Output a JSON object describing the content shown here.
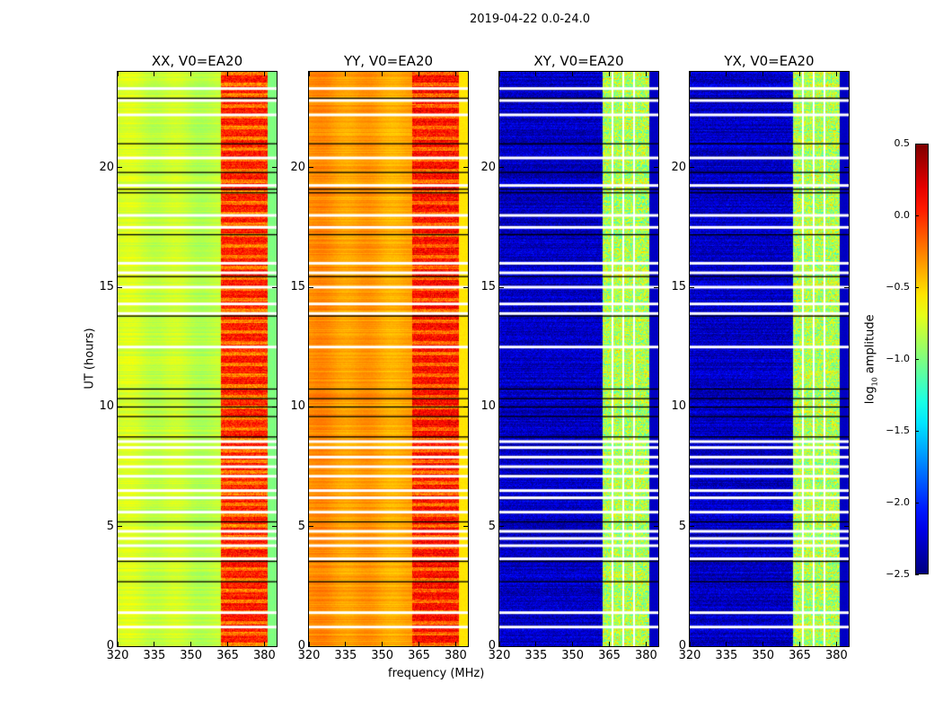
{
  "suptitle": "2019-04-22 0.0-24.0",
  "chart_data": {
    "type": "heatmap",
    "title": "2019-04-22 0.0-24.0",
    "xlabel": "frequency (MHz)",
    "ylabel": "UT (hours)",
    "xlim": [
      320,
      385
    ],
    "ylim": [
      0,
      24
    ],
    "xticks": [
      "320",
      "335",
      "350",
      "365",
      "380"
    ],
    "yticks": [
      "0",
      "5",
      "10",
      "15",
      "20"
    ],
    "xtick_values": [
      320,
      335,
      350,
      365,
      380
    ],
    "ytick_values": [
      0,
      5,
      10,
      15,
      20
    ],
    "colormap": "jet",
    "colorbar": {
      "label_main": "log",
      "label_sub": "10",
      "label_rest": " amplitude",
      "vmin": -2.5,
      "vmax": 0.5,
      "ticks": [
        "0.5",
        "0.0",
        "−0.5",
        "−1.0",
        "−1.5",
        "−2.0",
        "−2.5"
      ],
      "tick_values": [
        0.5,
        0.0,
        -0.5,
        -1.0,
        -1.5,
        -2.0,
        -2.5
      ]
    },
    "band_MHz": [
      362,
      381
    ],
    "band_gaps_MHz": [
      366,
      370.5,
      375
    ],
    "flagged_hours": [
      0.8,
      1.4,
      3.65,
      4.2,
      4.5,
      4.8,
      5.6,
      6.2,
      6.5,
      7.1,
      7.5,
      7.9,
      8.3,
      8.55,
      12.5,
      13.9,
      14.3,
      15.0,
      15.6,
      16.0,
      17.5,
      18.0,
      19.25,
      20.4,
      22.2,
      22.8,
      23.3
    ],
    "gap_lines_hours": [
      2.7,
      3.55,
      5.2,
      8.75,
      9.6,
      10.0,
      10.35,
      10.75,
      13.8,
      15.45,
      17.2,
      18.95,
      19.1,
      19.8,
      21.0,
      22.9
    ],
    "panels": [
      {
        "title": "XX, V0=EA20",
        "base_level": -0.75,
        "band_level": 0.05,
        "band_gap_visible": false
      },
      {
        "title": "YY, V0=EA20",
        "base_level": -0.3,
        "band_level": 0.1,
        "band_gap_visible": false
      },
      {
        "title": "XY, V0=EA20",
        "base_level": -2.3,
        "band_level": -0.85,
        "band_gap_visible": true
      },
      {
        "title": "YX, V0=EA20",
        "base_level": -2.3,
        "band_level": -0.85,
        "band_gap_visible": true
      }
    ]
  }
}
